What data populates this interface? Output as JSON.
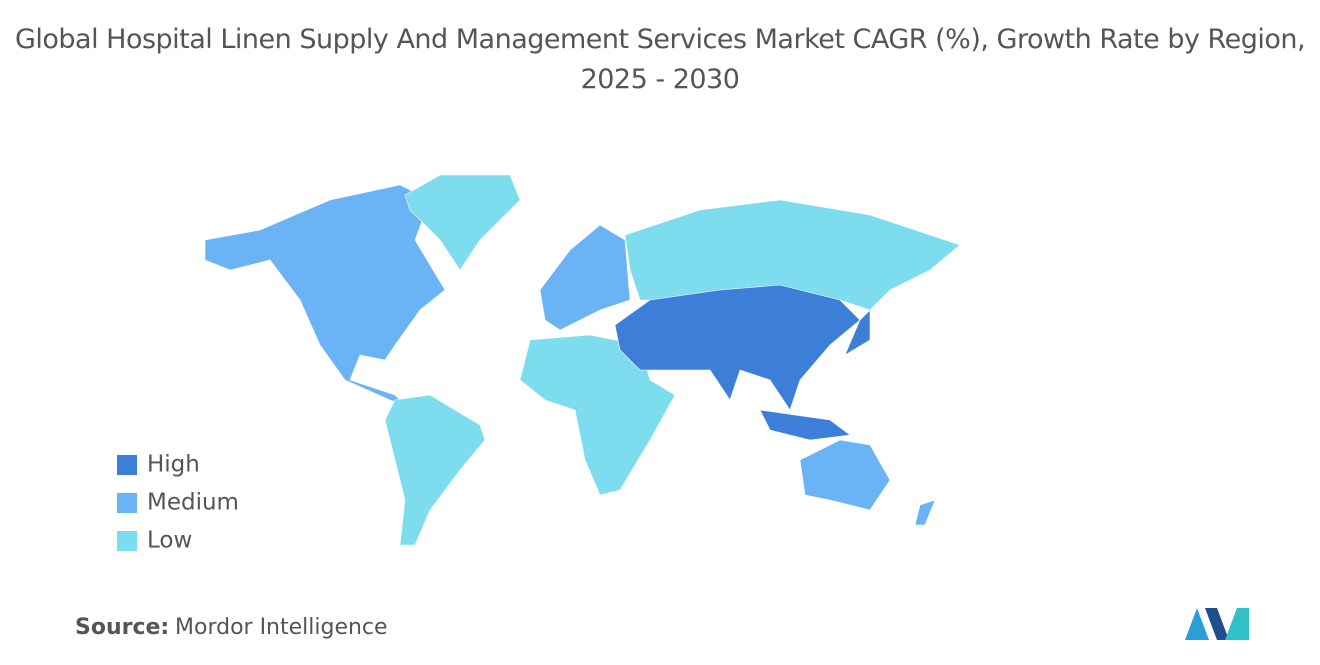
{
  "title": "Global Hospital Linen Supply And Management Services Market CAGR (%), Growth Rate by Region, 2025 - 2030",
  "legend": [
    {
      "label": "High",
      "color": "#3d7fd8"
    },
    {
      "label": "Medium",
      "color": "#6ab3f4"
    },
    {
      "label": "Low",
      "color": "#7ddcee"
    }
  ],
  "source": {
    "label": "Source:",
    "text": "Mordor Intelligence"
  }
}
